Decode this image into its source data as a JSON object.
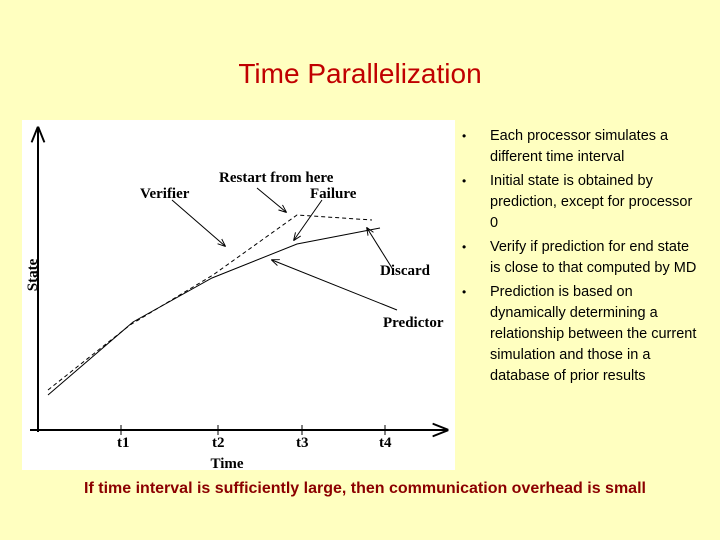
{
  "title": "Time Parallelization",
  "diagram": {
    "y_axis_label": "State",
    "x_axis_label": "Time",
    "ticks": [
      "t1",
      "t2",
      "t3",
      "t4"
    ],
    "labels": {
      "verifier": "Verifier",
      "restart": "Restart from here",
      "failure": "Failure",
      "discard": "Discard",
      "predictor": "Predictor"
    }
  },
  "bullets": [
    "Each processor simulates a different time interval",
    "Initial state is obtained by prediction, except for processor 0",
    "Verify if prediction for end state is close to that computed by MD",
    "Prediction is based on dynamically determining a relationship between the current simulation and those in a database of prior results"
  ],
  "footer": "If time interval is sufficiently large, then communication overhead is small"
}
